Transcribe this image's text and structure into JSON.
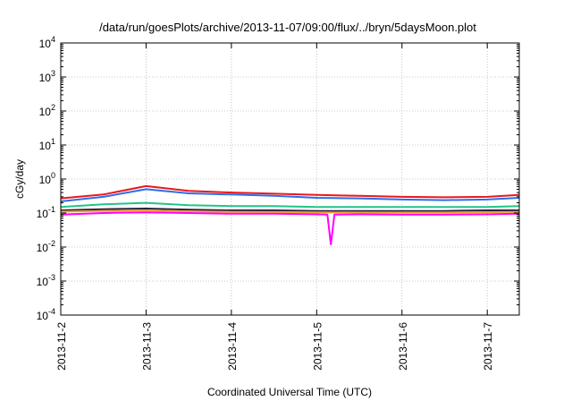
{
  "chart_data": {
    "type": "line",
    "title": "/data/run/goesPlots/archive/2013-11-07/09:00/flux/../bryn/5daysMoon.plot",
    "xlabel": "Coordinated Universal Time (UTC)",
    "ylabel": "cGy/day",
    "y_scale": "log",
    "ylim": [
      0.0001,
      10000
    ],
    "y_ticks": [
      {
        "value": 0.0001,
        "base": "10",
        "exp": "-4"
      },
      {
        "value": 0.001,
        "base": "10",
        "exp": "-3"
      },
      {
        "value": 0.01,
        "base": "10",
        "exp": "-2"
      },
      {
        "value": 0.1,
        "base": "10",
        "exp": "-1"
      },
      {
        "value": 1,
        "base": "10",
        "exp": "0"
      },
      {
        "value": 10,
        "base": "10",
        "exp": "1"
      },
      {
        "value": 100,
        "base": "10",
        "exp": "2"
      },
      {
        "value": 1000,
        "base": "10",
        "exp": "3"
      },
      {
        "value": 10000,
        "base": "10",
        "exp": "4"
      }
    ],
    "xlim": [
      "2013-11-02T00:00",
      "2013-11-07T09:00"
    ],
    "x_ticks": [
      "2013-11-2",
      "2013-11-3",
      "2013-11-4",
      "2013-11-5",
      "2013-11-6",
      "2013-11-7"
    ],
    "grid": true,
    "series": [
      {
        "color": "#e8191d",
        "x": [
          "2013-11-02T00:00",
          "2013-11-02T12:00",
          "2013-11-03T00:00",
          "2013-11-03T12:00",
          "2013-11-04T00:00",
          "2013-11-04T12:00",
          "2013-11-05T00:00",
          "2013-11-05T12:00",
          "2013-11-06T00:00",
          "2013-11-06T12:00",
          "2013-11-07T00:00",
          "2013-11-07T09:00"
        ],
        "values": [
          0.27,
          0.35,
          0.62,
          0.45,
          0.4,
          0.37,
          0.34,
          0.32,
          0.3,
          0.29,
          0.3,
          0.34
        ]
      },
      {
        "color": "#2f6de8",
        "x": [
          "2013-11-02T00:00",
          "2013-11-02T12:00",
          "2013-11-03T00:00",
          "2013-11-03T12:00",
          "2013-11-04T00:00",
          "2013-11-04T12:00",
          "2013-11-05T00:00",
          "2013-11-05T12:00",
          "2013-11-06T00:00",
          "2013-11-06T12:00",
          "2013-11-07T00:00",
          "2013-11-07T09:00"
        ],
        "values": [
          0.22,
          0.3,
          0.5,
          0.38,
          0.35,
          0.32,
          0.28,
          0.27,
          0.25,
          0.24,
          0.25,
          0.28
        ]
      },
      {
        "color": "#22c487",
        "x": [
          "2013-11-02T00:00",
          "2013-11-02T12:00",
          "2013-11-03T00:00",
          "2013-11-03T12:00",
          "2013-11-04T00:00",
          "2013-11-04T12:00",
          "2013-11-05T00:00",
          "2013-11-05T12:00",
          "2013-11-06T00:00",
          "2013-11-06T12:00",
          "2013-11-07T00:00",
          "2013-11-07T09:00"
        ],
        "values": [
          0.15,
          0.18,
          0.2,
          0.17,
          0.16,
          0.16,
          0.15,
          0.15,
          0.15,
          0.15,
          0.15,
          0.16
        ]
      },
      {
        "color": "#2a1f3d",
        "x": [
          "2013-11-02T00:00",
          "2013-11-02T12:00",
          "2013-11-03T00:00",
          "2013-11-03T12:00",
          "2013-11-04T00:00",
          "2013-11-04T12:00",
          "2013-11-05T00:00",
          "2013-11-05T12:00",
          "2013-11-06T00:00",
          "2013-11-06T12:00",
          "2013-11-07T00:00",
          "2013-11-07T09:00"
        ],
        "values": [
          0.12,
          0.13,
          0.135,
          0.125,
          0.12,
          0.12,
          0.115,
          0.115,
          0.115,
          0.115,
          0.12,
          0.12
        ]
      },
      {
        "color": "#f0a030",
        "x": [
          "2013-11-02T00:00",
          "2013-11-02T12:00",
          "2013-11-03T00:00",
          "2013-11-03T12:00",
          "2013-11-04T00:00",
          "2013-11-04T12:00",
          "2013-11-05T00:00",
          "2013-11-05T12:00",
          "2013-11-06T00:00",
          "2013-11-06T12:00",
          "2013-11-07T00:00",
          "2013-11-07T09:00"
        ],
        "values": [
          0.11,
          0.115,
          0.12,
          0.112,
          0.108,
          0.107,
          0.105,
          0.104,
          0.104,
          0.104,
          0.106,
          0.108
        ]
      },
      {
        "color": "#ff00ff",
        "x": [
          "2013-11-02T00:00",
          "2013-11-02T12:00",
          "2013-11-03T00:00",
          "2013-11-03T12:00",
          "2013-11-04T00:00",
          "2013-11-04T12:00",
          "2013-11-05T00:00",
          "2013-11-05T03:00",
          "2013-11-05T04:00",
          "2013-11-05T05:00",
          "2013-11-05T12:00",
          "2013-11-06T00:00",
          "2013-11-06T12:00",
          "2013-11-07T00:00",
          "2013-11-07T09:00"
        ],
        "values": [
          0.09,
          0.1,
          0.105,
          0.1,
          0.095,
          0.095,
          0.092,
          0.09,
          0.012,
          0.09,
          0.092,
          0.09,
          0.09,
          0.092,
          0.095
        ]
      }
    ]
  }
}
